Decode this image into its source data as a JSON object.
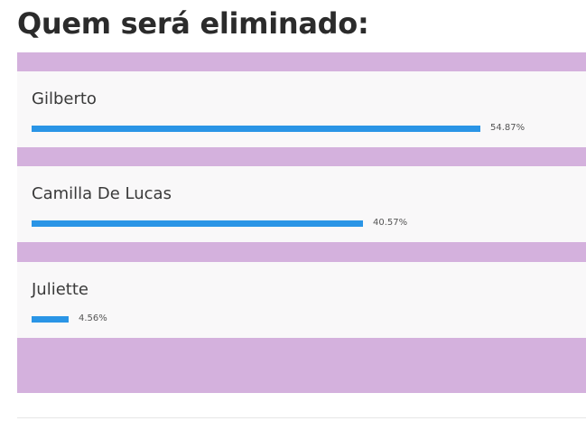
{
  "title": "Quem será eliminado:",
  "colors": {
    "panel_background": "#d4b1dd",
    "option_background": "#f9f8f9",
    "bar": "#2a95e6"
  },
  "options": [
    {
      "name": "Gilberto",
      "percent_label": "54.87%",
      "percent": 54.87
    },
    {
      "name": "Camilla De Lucas",
      "percent_label": "40.57%",
      "percent": 40.57
    },
    {
      "name": "Juliette",
      "percent_label": "4.56%",
      "percent": 4.56
    }
  ]
}
